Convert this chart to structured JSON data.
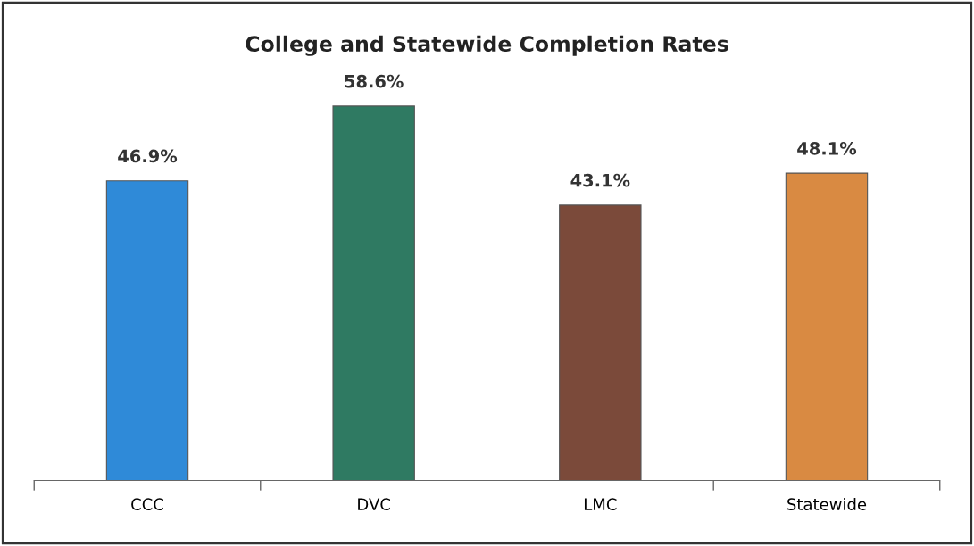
{
  "chart_data": {
    "type": "bar",
    "title": "College and Statewide Completion Rates",
    "categories": [
      "CCC",
      "DVC",
      "LMC",
      "Statewide"
    ],
    "values": [
      46.9,
      58.6,
      43.1,
      48.1
    ],
    "colors": [
      "#2f8ad8",
      "#2f7a62",
      "#7b4a3a",
      "#d98a42"
    ],
    "value_labels": [
      "46.9%",
      "58.6%",
      "43.1%",
      "48.1%"
    ]
  }
}
